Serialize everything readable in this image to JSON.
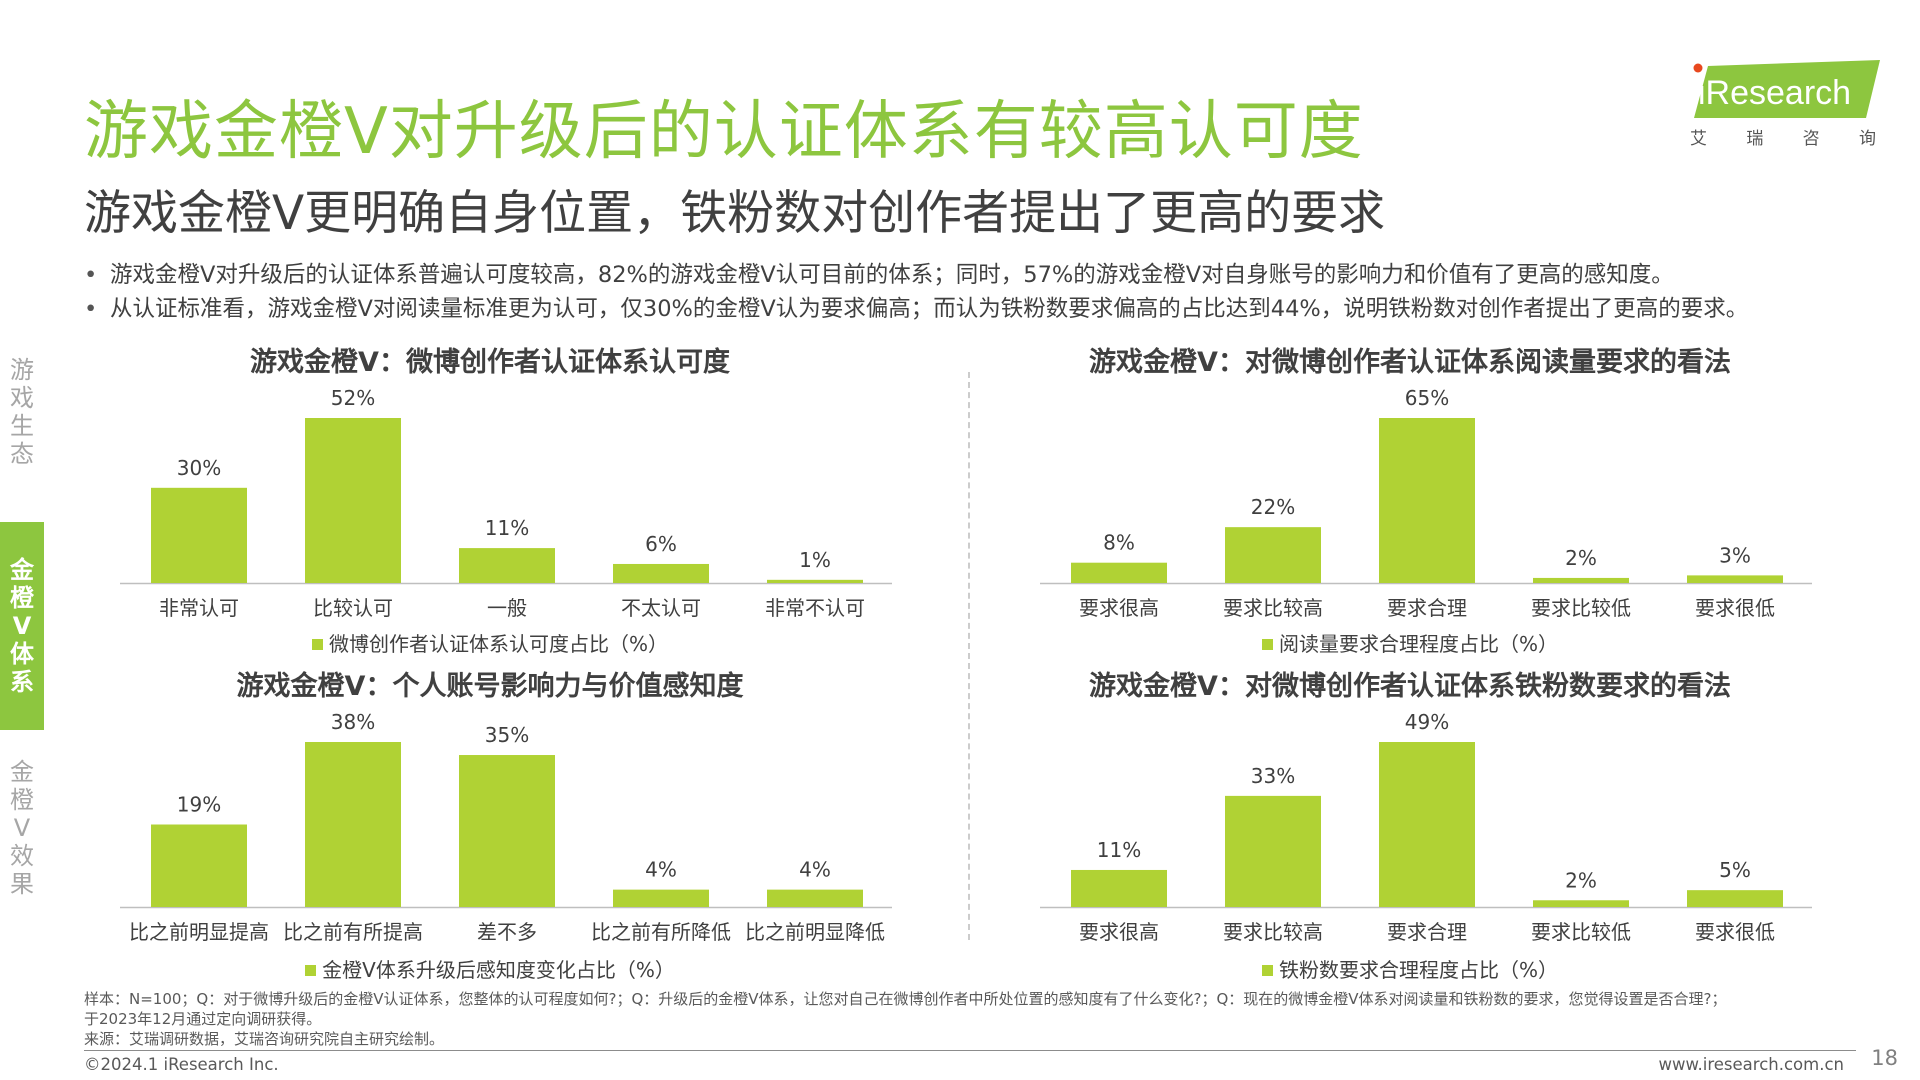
{
  "header": {
    "title": "游戏金橙V对升级后的认证体系有较高认可度",
    "subtitle": "游戏金橙V更明确自身位置，铁粉数对创作者提出了更高的要求"
  },
  "logo": {
    "text": "iResearch",
    "cn_chars": [
      "艾",
      "瑞",
      "咨",
      "询"
    ]
  },
  "bullets": [
    "游戏金橙V对升级后的认证体系普遍认可度较高，82%的游戏金橙V认可目前的体系；同时，57%的游戏金橙V对自身账号的影响力和价值有了更高的感知度。",
    "从认证标准看，游戏金橙V对阅读量标准更为认可，仅30%的金橙V认为要求偏高；而认为铁粉数要求偏高的占比达到44%，说明铁粉数对创作者提出了更高的要求。"
  ],
  "sidebar": [
    {
      "label": "游戏生态",
      "chars": [
        "游",
        "戏",
        "生",
        "态"
      ]
    },
    {
      "label": "金橙V体系",
      "chars": [
        "金",
        "橙",
        "V",
        "体",
        "系"
      ]
    },
    {
      "label": "金橙V效果",
      "chars": [
        "金",
        "橙",
        "V",
        "效",
        "果"
      ]
    }
  ],
  "colors": {
    "accent": "#8dc63f",
    "bar": "#b0d234",
    "text": "#404040"
  },
  "chart_data": [
    {
      "type": "bar",
      "title": "游戏金橙V：微博创作者认证体系认可度",
      "categories": [
        "非常认可",
        "比较认可",
        "一般",
        "不太认可",
        "非常不认可"
      ],
      "values": [
        30,
        52,
        11,
        6,
        1
      ],
      "value_labels": [
        "30%",
        "52%",
        "11%",
        "6%",
        "1%"
      ],
      "legend": "微博创作者认证体系认可度占比（%）",
      "ylim": [
        0,
        52
      ]
    },
    {
      "type": "bar",
      "title": "游戏金橙V：对微博创作者认证体系阅读量要求的看法",
      "categories": [
        "要求很高",
        "要求比较高",
        "要求合理",
        "要求比较低",
        "要求很低"
      ],
      "values": [
        8,
        22,
        65,
        2,
        3
      ],
      "value_labels": [
        "8%",
        "22%",
        "65%",
        "2%",
        "3%"
      ],
      "legend": "阅读量要求合理程度占比（%）",
      "ylim": [
        0,
        65
      ]
    },
    {
      "type": "bar",
      "title": "游戏金橙V：个人账号影响力与价值感知度",
      "categories": [
        "比之前明显提高",
        "比之前有所提高",
        "差不多",
        "比之前有所降低",
        "比之前明显降低"
      ],
      "values": [
        19,
        38,
        35,
        4,
        4
      ],
      "value_labels": [
        "19%",
        "38%",
        "35%",
        "4%",
        "4%"
      ],
      "legend": "金橙V体系升级后感知度变化占比（%）",
      "ylim": [
        0,
        38
      ]
    },
    {
      "type": "bar",
      "title": "游戏金橙V：对微博创作者认证体系铁粉数要求的看法",
      "categories": [
        "要求很高",
        "要求比较高",
        "要求合理",
        "要求比较低",
        "要求很低"
      ],
      "values": [
        11,
        33,
        49,
        2,
        5
      ],
      "value_labels": [
        "11%",
        "33%",
        "49%",
        "2%",
        "5%"
      ],
      "legend": "铁粉数要求合理程度占比（%）",
      "ylim": [
        0,
        49
      ]
    }
  ],
  "footnote": {
    "line1": "样本：N=100；Q：对于微博升级后的金橙V认证体系，您整体的认可程度如何?；Q：升级后的金橙V体系，让您对自己在微博创作者中所处位置的感知度有了什么变化?；Q：现在的微博金橙V体系对阅读量和铁粉数的要求，您觉得设置是否合理?；",
    "line2": "于2023年12月通过定向调研获得。",
    "line3": "来源：艾瑞调研数据，艾瑞咨询研究院自主研究绘制。"
  },
  "footer": {
    "copyright": "©2024.1 iResearch Inc.",
    "website": "www.iresearch.com.cn",
    "page_number": "18"
  }
}
